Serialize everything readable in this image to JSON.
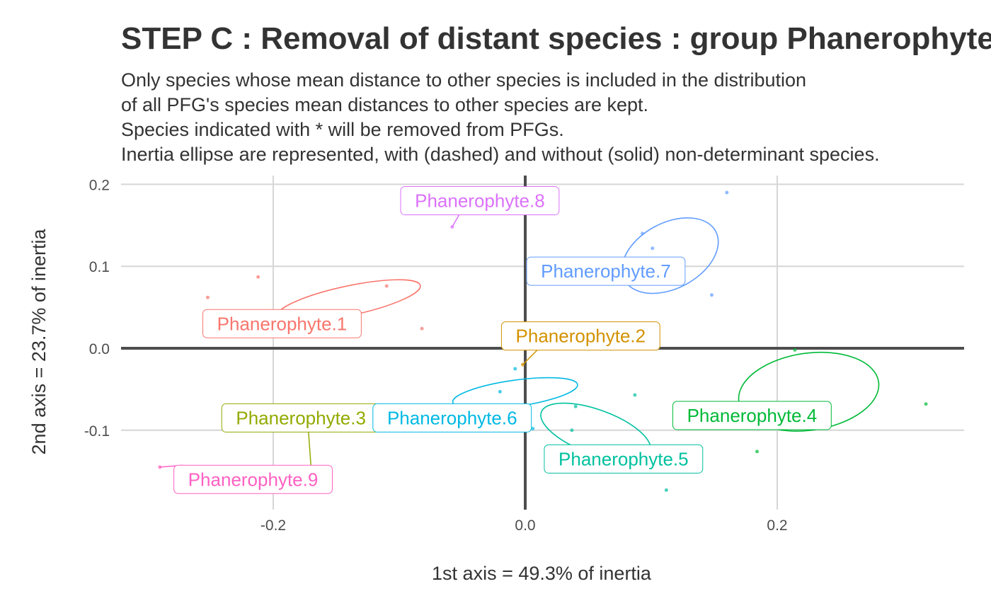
{
  "chart_data": {
    "type": "scatter",
    "title": "STEP C : Removal of distant species : group Phanerophyte",
    "subtitle_lines": [
      "Only species whose mean distance to other species is included in the distribution",
      "of all PFG's species mean distances to other species are kept.",
      "Species indicated with * will be removed from PFGs.",
      "Inertia ellipse are represented, with (dashed) and without (solid) non-determinant species."
    ],
    "xlabel": "1st axis = 49.3% of inertia",
    "ylabel": "2nd axis = 23.7% of inertia",
    "xlim": [
      -0.32,
      0.36
    ],
    "ylim": [
      -0.2,
      0.21
    ],
    "x_ticks": [
      {
        "v": -0.2,
        "label": "-0.2"
      },
      {
        "v": 0.0,
        "label": "0.0"
      },
      {
        "v": 0.2,
        "label": "0.2"
      }
    ],
    "y_ticks": [
      {
        "v": 0.2,
        "label": "0.2"
      },
      {
        "v": 0.1,
        "label": "0.1"
      },
      {
        "v": 0.0,
        "label": "0.0"
      },
      {
        "v": -0.1,
        "label": "-0.1"
      }
    ],
    "grid": true,
    "legend": "none",
    "series": [
      {
        "name": "Phanerophyte.1",
        "color": "#F8766D",
        "label": {
          "x": -0.193,
          "y": 0.03
        },
        "points": [
          {
            "x": -0.212,
            "y": 0.087
          },
          {
            "x": -0.252,
            "y": 0.062
          },
          {
            "x": -0.11,
            "y": 0.076
          },
          {
            "x": -0.082,
            "y": 0.024
          }
        ],
        "ellipse": {
          "cx": -0.14,
          "cy": 0.058,
          "rx": 0.058,
          "ry": 0.018,
          "angle": -12
        }
      },
      {
        "name": "Phanerophyte.2",
        "color": "#D39200",
        "label": {
          "x": 0.044,
          "y": 0.015
        },
        "points": [
          {
            "x": -0.002,
            "y": -0.02
          }
        ],
        "ellipse": null
      },
      {
        "name": "Phanerophyte.3",
        "color": "#93AA00",
        "label": {
          "x": -0.178,
          "y": -0.085
        },
        "points": [
          {
            "x": -0.17,
            "y": -0.145
          }
        ],
        "ellipse": null
      },
      {
        "name": "Phanerophyte.4",
        "color": "#00BA38",
        "label": {
          "x": 0.18,
          "y": -0.082
        },
        "points": [
          {
            "x": 0.214,
            "y": -0.002
          },
          {
            "x": 0.318,
            "y": -0.068
          },
          {
            "x": 0.184,
            "y": -0.126
          }
        ],
        "ellipse": {
          "cx": 0.225,
          "cy": -0.053,
          "rx": 0.056,
          "ry": 0.047,
          "angle": -8
        }
      },
      {
        "name": "Phanerophyte.5",
        "color": "#00C19F",
        "label": {
          "x": 0.078,
          "y": -0.135
        },
        "points": [
          {
            "x": 0.04,
            "y": -0.071
          },
          {
            "x": 0.037,
            "y": -0.1
          },
          {
            "x": 0.087,
            "y": -0.057
          },
          {
            "x": 0.112,
            "y": -0.173
          }
        ],
        "ellipse": {
          "cx": 0.056,
          "cy": -0.102,
          "rx": 0.046,
          "ry": 0.027,
          "angle": 20
        }
      },
      {
        "name": "Phanerophyte.6",
        "color": "#00B9E3",
        "label": {
          "x": -0.058,
          "y": -0.085
        },
        "points": [
          {
            "x": -0.008,
            "y": -0.025
          },
          {
            "x": -0.02,
            "y": -0.053
          },
          {
            "x": 0.006,
            "y": -0.098
          }
        ],
        "ellipse": {
          "cx": -0.008,
          "cy": -0.055,
          "rx": 0.05,
          "ry": 0.016,
          "angle": -8
        }
      },
      {
        "name": "Phanerophyte.7",
        "color": "#619CFF",
        "label": {
          "x": 0.064,
          "y": 0.094
        },
        "points": [
          {
            "x": 0.16,
            "y": 0.19
          },
          {
            "x": 0.093,
            "y": 0.14
          },
          {
            "x": 0.101,
            "y": 0.122
          },
          {
            "x": 0.148,
            "y": 0.065
          }
        ],
        "ellipse": {
          "cx": 0.115,
          "cy": 0.113,
          "rx": 0.041,
          "ry": 0.04,
          "angle": -28
        }
      },
      {
        "name": "Phanerophyte.8",
        "color": "#DB72FB",
        "label": {
          "x": -0.036,
          "y": 0.18
        },
        "points": [
          {
            "x": -0.058,
            "y": 0.148
          }
        ],
        "ellipse": null
      },
      {
        "name": "Phanerophyte.9",
        "color": "#FF61C3",
        "label": {
          "x": -0.216,
          "y": -0.16
        },
        "points": [
          {
            "x": -0.29,
            "y": -0.145
          }
        ],
        "ellipse": null
      }
    ]
  }
}
